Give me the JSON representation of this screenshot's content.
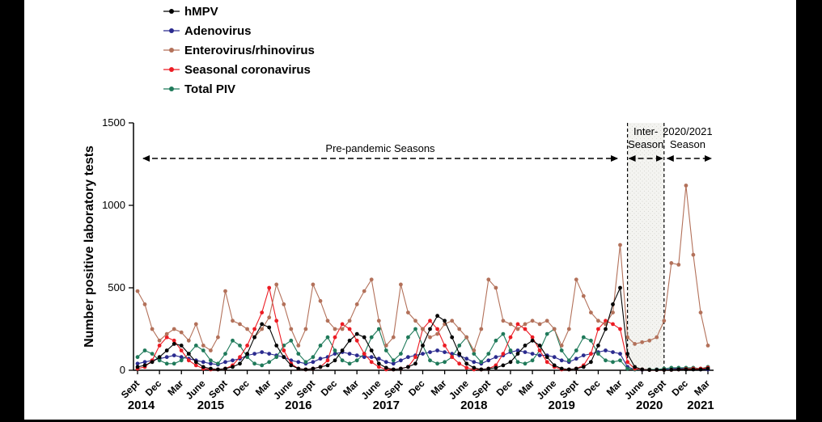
{
  "figure": {
    "ylabel": "Number positive laboratory tests",
    "annotations": {
      "pre_pandemic": "Pre-pandemic Seasons",
      "inter_season_line1": "Inter-",
      "inter_season_line2": "Season",
      "season_2020_line1": "2020/2021",
      "season_2020_line2": "Season"
    }
  },
  "chart_data": {
    "type": "line",
    "title": "",
    "xlabel": "",
    "ylabel": "Number positive laboratory tests",
    "ylim": [
      0,
      1500
    ],
    "yticks": [
      0,
      500,
      1000,
      1500
    ],
    "grid": false,
    "legend_position": "top-left",
    "x_resolution": "monthly",
    "xtick_labels_cycle": [
      "Sept",
      "Dec",
      "Mar",
      "June"
    ],
    "year_labels": [
      "2014",
      "2015",
      "2016",
      "2017",
      "2018",
      "2019",
      "2020",
      "2021"
    ],
    "year_label_indices": [
      0.5,
      10,
      22,
      34,
      46,
      58,
      70,
      77
    ],
    "x": [
      "2014-09",
      "2014-10",
      "2014-11",
      "2014-12",
      "2015-01",
      "2015-02",
      "2015-03",
      "2015-04",
      "2015-05",
      "2015-06",
      "2015-07",
      "2015-08",
      "2015-09",
      "2015-10",
      "2015-11",
      "2015-12",
      "2016-01",
      "2016-02",
      "2016-03",
      "2016-04",
      "2016-05",
      "2016-06",
      "2016-07",
      "2016-08",
      "2016-09",
      "2016-10",
      "2016-11",
      "2016-12",
      "2017-01",
      "2017-02",
      "2017-03",
      "2017-04",
      "2017-05",
      "2017-06",
      "2017-07",
      "2017-08",
      "2017-09",
      "2017-10",
      "2017-11",
      "2017-12",
      "2018-01",
      "2018-02",
      "2018-03",
      "2018-04",
      "2018-05",
      "2018-06",
      "2018-07",
      "2018-08",
      "2018-09",
      "2018-10",
      "2018-11",
      "2018-12",
      "2019-01",
      "2019-02",
      "2019-03",
      "2019-04",
      "2019-05",
      "2019-06",
      "2019-07",
      "2019-08",
      "2019-09",
      "2019-10",
      "2019-11",
      "2019-12",
      "2020-01",
      "2020-02",
      "2020-03",
      "2020-04",
      "2020-05",
      "2020-06",
      "2020-07",
      "2020-08",
      "2020-09",
      "2020-10",
      "2020-11",
      "2020-12",
      "2021-01",
      "2021-02",
      "2021-03"
    ],
    "annotations": {
      "pre_pandemic_span": [
        0,
        66
      ],
      "inter_season_span": [
        67,
        72
      ],
      "season_2020_span": [
        72,
        78
      ]
    },
    "series": [
      {
        "name": "hMPV",
        "color": "#000000",
        "values": [
          20,
          30,
          50,
          80,
          120,
          160,
          150,
          100,
          50,
          20,
          10,
          5,
          10,
          20,
          40,
          100,
          200,
          280,
          260,
          150,
          80,
          30,
          10,
          5,
          10,
          20,
          30,
          60,
          120,
          180,
          220,
          200,
          120,
          40,
          15,
          5,
          10,
          20,
          40,
          150,
          250,
          330,
          300,
          200,
          100,
          40,
          15,
          5,
          10,
          15,
          30,
          50,
          100,
          150,
          180,
          150,
          80,
          30,
          10,
          5,
          10,
          20,
          50,
          150,
          250,
          400,
          500,
          100,
          20,
          5,
          2,
          2,
          2,
          3,
          5,
          5,
          5,
          5,
          10
        ]
      },
      {
        "name": "Adenovirus",
        "color": "#2b2b8f",
        "values": [
          40,
          50,
          60,
          70,
          80,
          90,
          80,
          70,
          60,
          50,
          40,
          35,
          50,
          60,
          70,
          90,
          100,
          110,
          100,
          90,
          80,
          60,
          50,
          40,
          50,
          70,
          80,
          100,
          110,
          100,
          90,
          80,
          80,
          70,
          50,
          40,
          60,
          80,
          90,
          100,
          110,
          120,
          110,
          100,
          90,
          70,
          50,
          40,
          60,
          80,
          90,
          110,
          120,
          110,
          100,
          90,
          90,
          80,
          60,
          50,
          70,
          90,
          100,
          110,
          120,
          110,
          100,
          20,
          5,
          3,
          3,
          5,
          8,
          10,
          10,
          10,
          8,
          5,
          5
        ]
      },
      {
        "name": "Enterovirus/rhinovirus",
        "color": "#b3715a",
        "values": [
          480,
          400,
          250,
          180,
          220,
          250,
          230,
          180,
          280,
          150,
          120,
          200,
          480,
          300,
          280,
          250,
          200,
          250,
          320,
          520,
          400,
          250,
          150,
          250,
          520,
          420,
          300,
          250,
          250,
          300,
          400,
          480,
          550,
          300,
          150,
          200,
          520,
          350,
          300,
          250,
          200,
          220,
          280,
          300,
          250,
          200,
          120,
          250,
          550,
          500,
          300,
          280,
          250,
          280,
          300,
          280,
          300,
          250,
          150,
          250,
          550,
          450,
          350,
          300,
          280,
          350,
          760,
          200,
          160,
          170,
          180,
          200,
          300,
          650,
          640,
          1120,
          700,
          350,
          150
        ]
      },
      {
        "name": "Seasonal coronavirus",
        "color": "#ec1c24",
        "values": [
          10,
          20,
          60,
          150,
          200,
          180,
          120,
          60,
          30,
          10,
          5,
          5,
          10,
          30,
          80,
          150,
          250,
          350,
          500,
          300,
          120,
          40,
          10,
          5,
          10,
          20,
          60,
          200,
          280,
          250,
          180,
          100,
          50,
          20,
          5,
          5,
          10,
          20,
          80,
          250,
          300,
          250,
          150,
          80,
          40,
          15,
          5,
          5,
          10,
          30,
          100,
          200,
          280,
          250,
          200,
          120,
          50,
          20,
          5,
          5,
          10,
          30,
          100,
          250,
          300,
          280,
          250,
          50,
          10,
          5,
          2,
          2,
          2,
          3,
          5,
          8,
          10,
          10,
          15
        ]
      },
      {
        "name": "Total PIV",
        "color": "#1f7a5a",
        "values": [
          80,
          120,
          100,
          60,
          40,
          40,
          60,
          100,
          150,
          120,
          60,
          40,
          100,
          180,
          150,
          80,
          40,
          30,
          50,
          80,
          150,
          180,
          100,
          50,
          80,
          150,
          200,
          120,
          60,
          40,
          60,
          100,
          200,
          250,
          120,
          60,
          100,
          200,
          250,
          150,
          60,
          40,
          50,
          80,
          150,
          200,
          100,
          50,
          100,
          180,
          220,
          120,
          50,
          40,
          60,
          120,
          220,
          250,
          120,
          60,
          120,
          200,
          180,
          100,
          60,
          50,
          60,
          10,
          5,
          5,
          5,
          5,
          10,
          15,
          15,
          15,
          15,
          10,
          20
        ]
      }
    ]
  }
}
